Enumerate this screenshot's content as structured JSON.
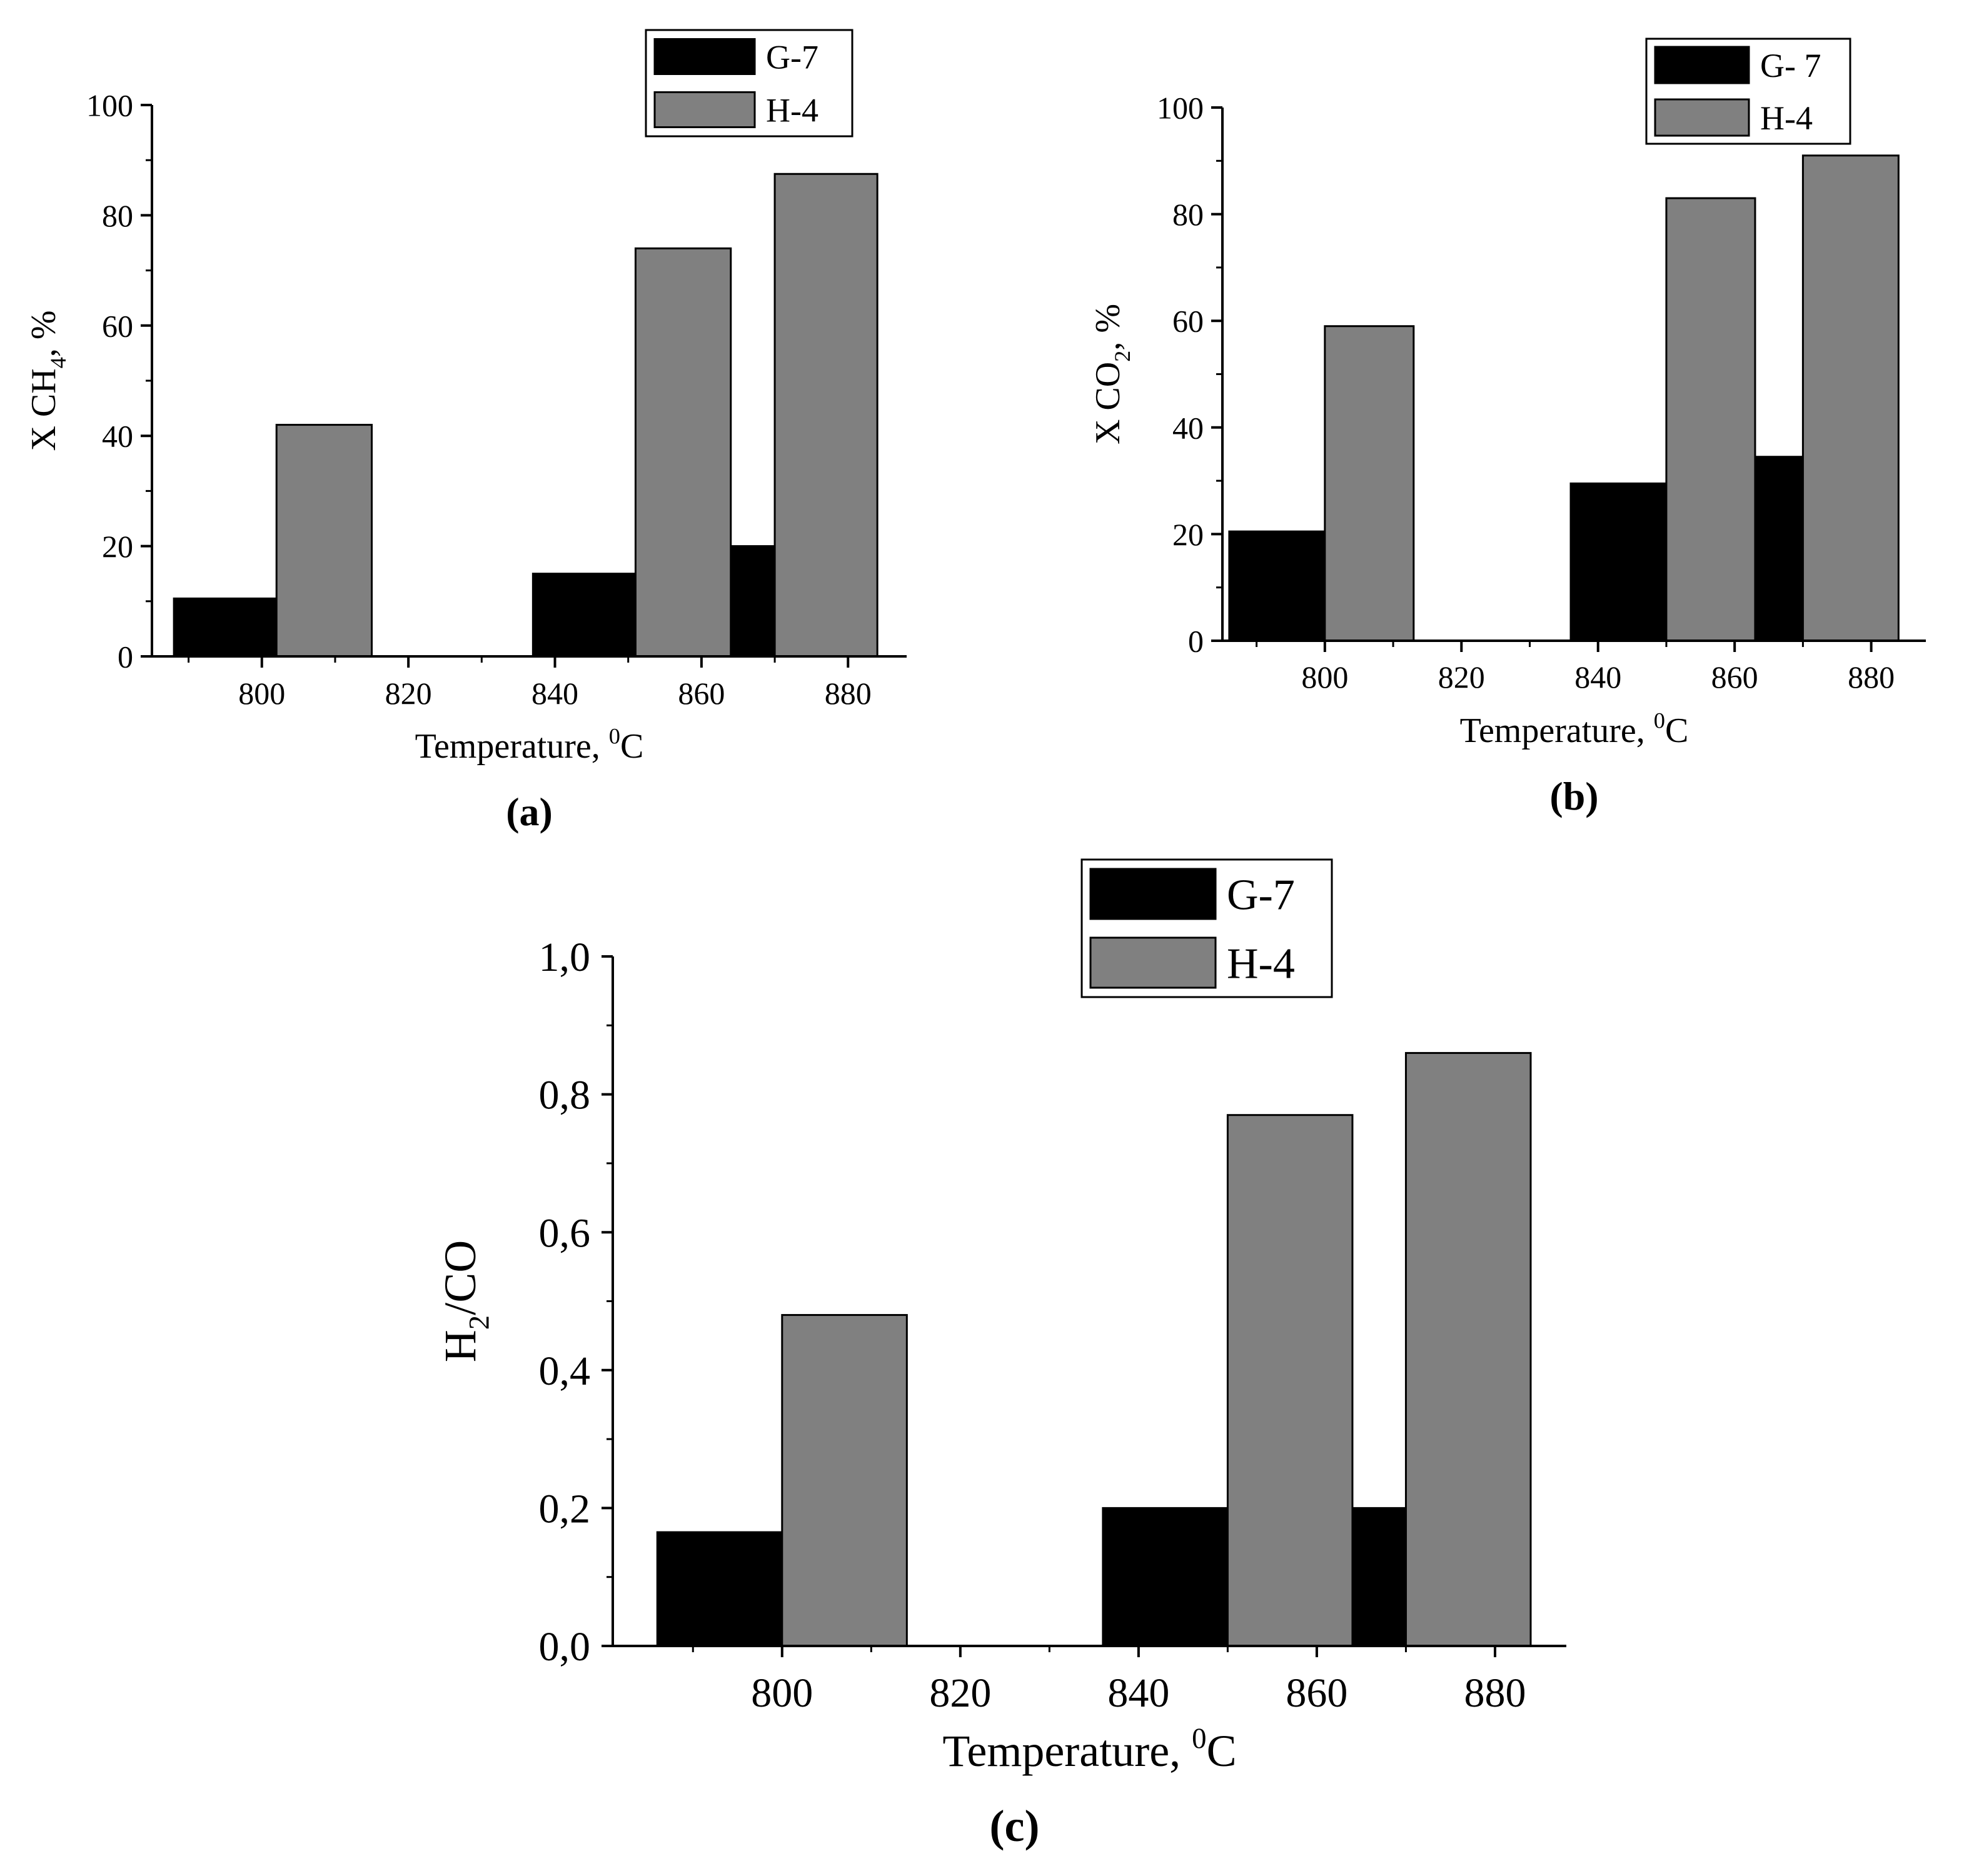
{
  "colors": {
    "g7": "#000000",
    "h4": "#808080",
    "axis": "#000000",
    "background": "#ffffff"
  },
  "chart_data": [
    {
      "id": "a",
      "type": "bar",
      "caption": "(a)",
      "xlabel_main": "Temperature, ",
      "xlabel_sup": "0",
      "xlabel_unit": "C",
      "ylabel_main": "X CH",
      "ylabel_sub": "4",
      "ylabel_tail": ", %",
      "xlim": [
        785,
        888
      ],
      "ylim": [
        0,
        100
      ],
      "xticks": [
        800,
        820,
        840,
        860,
        880
      ],
      "xtick_labels": [
        "800",
        "820",
        "840",
        "860",
        "880"
      ],
      "yticks": [
        0,
        20,
        40,
        60,
        80,
        100
      ],
      "ytick_labels": [
        "0",
        "20",
        "40",
        "60",
        "80",
        "100"
      ],
      "legend": [
        "G-7",
        "H-4"
      ],
      "series": [
        {
          "name": "G-7",
          "bars": [
            {
              "x0": 788,
              "x1": 802,
              "value": 10.5
            },
            {
              "x0": 837,
              "x1": 851,
              "value": 15
            },
            {
              "x0": 864,
              "x1": 870,
              "value": 20
            }
          ]
        },
        {
          "name": "H-4",
          "bars": [
            {
              "x0": 802,
              "x1": 815,
              "value": 42
            },
            {
              "x0": 851,
              "x1": 864,
              "value": 74
            },
            {
              "x0": 870,
              "x1": 884,
              "value": 87.5
            }
          ]
        }
      ]
    },
    {
      "id": "b",
      "type": "bar",
      "caption": "(b)",
      "xlabel_main": "Temperature, ",
      "xlabel_sup": "0",
      "xlabel_unit": "C",
      "ylabel_main": "X CO",
      "ylabel_sub": "2",
      "ylabel_tail": ", %",
      "xlim": [
        785,
        888
      ],
      "ylim": [
        0,
        100
      ],
      "xticks": [
        800,
        820,
        840,
        860,
        880
      ],
      "xtick_labels": [
        "800",
        "820",
        "840",
        "860",
        "880"
      ],
      "yticks": [
        0,
        20,
        40,
        60,
        80,
        100
      ],
      "ytick_labels": [
        "0",
        "20",
        "40",
        "60",
        "80",
        "100"
      ],
      "legend": [
        "G- 7",
        "H-4"
      ],
      "series": [
        {
          "name": "G- 7",
          "bars": [
            {
              "x0": 786,
              "x1": 800,
              "value": 20.5
            },
            {
              "x0": 836,
              "x1": 850,
              "value": 29.5
            },
            {
              "x0": 863,
              "x1": 870,
              "value": 34.5
            }
          ]
        },
        {
          "name": "H-4",
          "bars": [
            {
              "x0": 800,
              "x1": 813,
              "value": 59
            },
            {
              "x0": 850,
              "x1": 863,
              "value": 83
            },
            {
              "x0": 870,
              "x1": 884,
              "value": 91
            }
          ]
        }
      ]
    },
    {
      "id": "c",
      "type": "bar",
      "caption": "(c)",
      "xlabel_main": "Temperature, ",
      "xlabel_sup": "0",
      "xlabel_unit": "C",
      "ylabel_main": "H",
      "ylabel_sub": "2",
      "ylabel_tail": "/CO",
      "xlim": [
        781,
        888
      ],
      "ylim": [
        0,
        1.0
      ],
      "xticks": [
        800,
        820,
        840,
        860,
        880
      ],
      "xtick_labels": [
        "800",
        "820",
        "840",
        "860",
        "880"
      ],
      "yticks": [
        0,
        0.2,
        0.4,
        0.6,
        0.8,
        1.0
      ],
      "ytick_labels": [
        "0,0",
        "0,2",
        "0,4",
        "0,6",
        "0,8",
        "1,0"
      ],
      "legend": [
        "G-7",
        "H-4"
      ],
      "series": [
        {
          "name": "G-7",
          "bars": [
            {
              "x0": 786,
              "x1": 800,
              "value": 0.165
            },
            {
              "x0": 836,
              "x1": 850,
              "value": 0.2
            },
            {
              "x0": 864,
              "x1": 870,
              "value": 0.2
            }
          ]
        },
        {
          "name": "H-4",
          "bars": [
            {
              "x0": 800,
              "x1": 814,
              "value": 0.48
            },
            {
              "x0": 850,
              "x1": 864,
              "value": 0.77
            },
            {
              "x0": 870,
              "x1": 884,
              "value": 0.86
            }
          ]
        }
      ]
    }
  ]
}
